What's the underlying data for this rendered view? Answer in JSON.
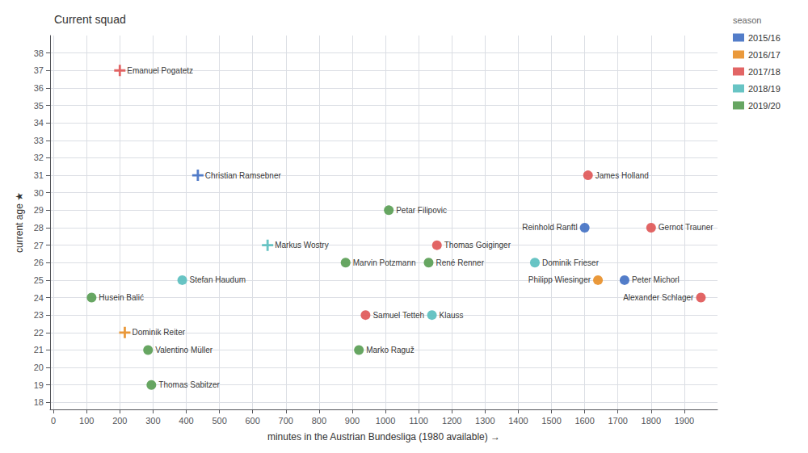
{
  "chart_data": {
    "type": "scatter",
    "title": "Current squad",
    "x_label": "minutes in the Austrian Bundesliga (1980 available) →",
    "y_label": "current age ★",
    "xlim": [
      -10,
      2000
    ],
    "ylim": [
      17.6,
      39.0
    ],
    "xticks": [
      0,
      100,
      200,
      300,
      400,
      500,
      600,
      700,
      800,
      900,
      1000,
      1100,
      1200,
      1300,
      1400,
      1500,
      1600,
      1700,
      1800,
      1900
    ],
    "yticks": [
      18,
      19,
      20,
      21,
      22,
      23,
      24,
      25,
      26,
      27,
      28,
      29,
      30,
      31,
      32,
      33,
      34,
      35,
      36,
      37,
      38
    ],
    "grid": true,
    "legend": "right",
    "legend_title": "season",
    "series": [
      {
        "name": "2015/16",
        "color": "#4472c4",
        "x": [
          435,
          1600,
          1720
        ],
        "values": [
          31,
          28,
          25
        ],
        "labels": [
          "Christian Ramsebner",
          "Reinhold Ranftl",
          "Peter Michorl"
        ],
        "markers": [
          "plus",
          "circle",
          "circle"
        ]
      },
      {
        "name": "2016/17",
        "color": "#e8902a",
        "x": [
          215,
          1640
        ],
        "values": [
          22,
          25
        ],
        "labels": [
          "Dominik Reiter",
          "Philipp Wiesinger"
        ],
        "markers": [
          "plus",
          "circle"
        ]
      },
      {
        "name": "2017/18",
        "color": "#e05858",
        "x": [
          200,
          1155,
          940,
          1610,
          1800,
          1950
        ],
        "values": [
          37,
          27,
          23,
          31,
          28,
          24
        ],
        "labels": [
          "Emanuel Pogatetz",
          "Thomas Goiginger",
          "Samuel Tetteh",
          "James Holland",
          "Gernot Trauner",
          "Alexander Schlager"
        ],
        "markers": [
          "plus",
          "circle",
          "circle",
          "circle",
          "circle",
          "circle"
        ]
      },
      {
        "name": "2018/19",
        "color": "#5bbfbf",
        "x": [
          645,
          1140,
          1450,
          388
        ],
        "values": [
          27,
          23,
          26,
          25
        ],
        "labels": [
          "Markus Wostry",
          "Klauss",
          "Dominik Frieser",
          "Stefan Haudum"
        ],
        "markers": [
          "plus",
          "circle",
          "circle",
          "circle"
        ]
      },
      {
        "name": "2019/20",
        "color": "#5a9e55",
        "x": [
          1010,
          1130,
          920,
          115,
          285,
          295,
          880
        ],
        "values": [
          29,
          26,
          21,
          24,
          21,
          19,
          26
        ],
        "labels": [
          "Petar Filipovic",
          "René Renner",
          "Marko Raguž",
          "Husein Balić",
          "Valentino Müller",
          "Thomas Sabitzer",
          "Marvin Potzmann"
        ],
        "markers": [
          "circle",
          "circle",
          "circle",
          "circle",
          "circle",
          "circle",
          "circle"
        ]
      }
    ]
  }
}
